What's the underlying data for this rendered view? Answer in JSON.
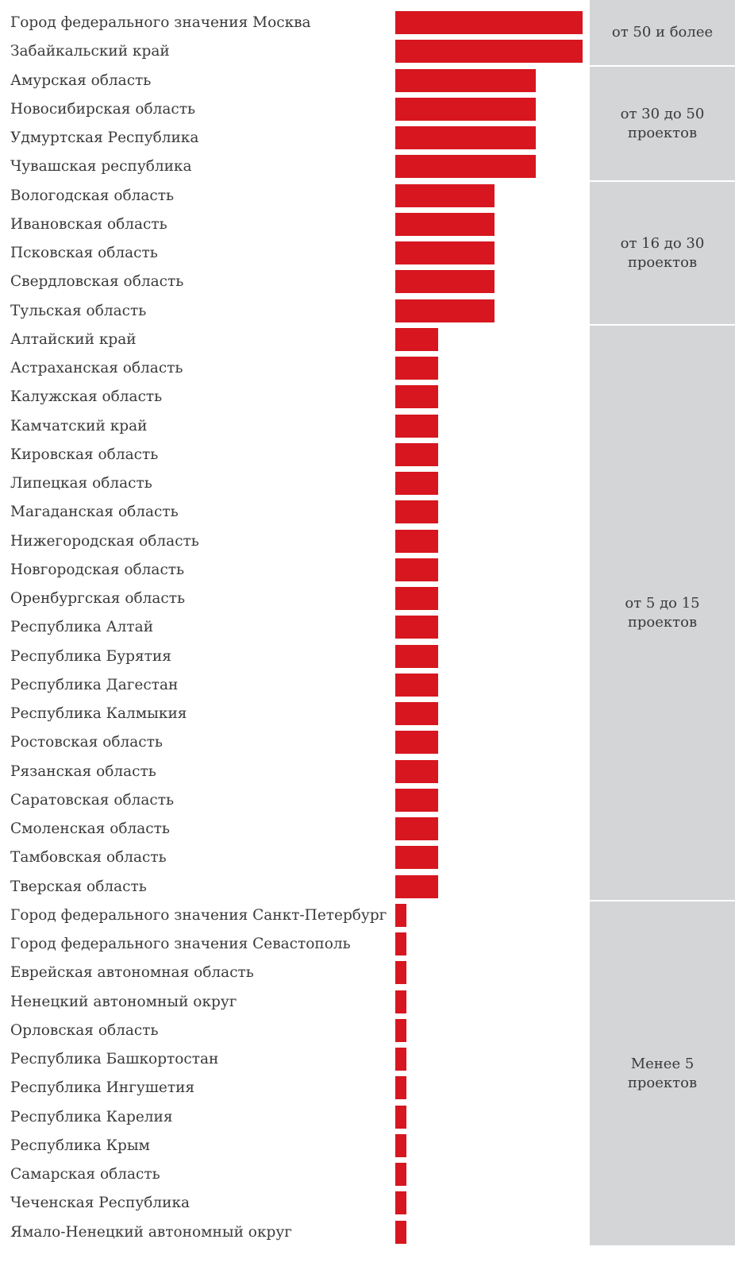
{
  "chart_data": {
    "type": "bar",
    "orientation": "horizontal",
    "categories": [
      "Город федерального значения Москва",
      "Забайкальский край",
      "Амурская область",
      "Новосибирская область",
      "Удмуртская Республика",
      "Чувашская республика",
      "Вологодская область",
      "Ивановская область",
      "Псковская область",
      "Свердловская область",
      "Тульская область",
      "Алтайский край",
      "Астраханская область",
      "Калужская область",
      "Камчатский край",
      "Кировская область",
      "Липецкая область",
      "Магаданская область",
      "Нижегородская область",
      "Новгородская область",
      "Оренбургская область",
      "Республика Алтай",
      "Республика Бурятия",
      "Республика Дагестан",
      "Республика Калмыкия",
      "Ростовская область",
      "Рязанская область",
      "Саратовская область",
      "Смоленская область",
      "Тамбовская область",
      "Тверская область",
      "Город федерального значения Санкт-Петербург",
      "Город федерального значения Севастополь",
      "Еврейская автономная область",
      "Ненецкий автономный округ",
      "Орловская область",
      "Республика Башкортостан",
      "Республика Ингушетия",
      "Республика Карелия",
      "Республика Крым",
      "Самарская область",
      "Чеченская Республика",
      "Ямало-Ненецкий автономный округ"
    ],
    "values": [
      50,
      50,
      37.5,
      37.5,
      37.5,
      37.5,
      26.5,
      26.5,
      26.5,
      26.5,
      26.5,
      11.5,
      11.5,
      11.5,
      11.5,
      11.5,
      11.5,
      11.5,
      11.5,
      11.5,
      11.5,
      11.5,
      11.5,
      11.5,
      11.5,
      11.5,
      11.5,
      11.5,
      11.5,
      11.5,
      11.5,
      3,
      3,
      3,
      3,
      3,
      3,
      3,
      3,
      3,
      3,
      3,
      3
    ],
    "xlim": [
      0,
      50
    ],
    "bar_color": "#d7161f",
    "grid": false,
    "groups": [
      {
        "label": "от 50 и более",
        "first_index": 0,
        "count": 2
      },
      {
        "label": "от 30 до 50 проектов",
        "first_index": 2,
        "count": 4
      },
      {
        "label": "от 16 до 30 проектов",
        "first_index": 6,
        "count": 5
      },
      {
        "label": "от 5 до 15 проектов",
        "first_index": 11,
        "count": 20
      },
      {
        "label": "Менее 5 проектов",
        "first_index": 31,
        "count": 12
      }
    ],
    "group_band_color": "#d4d5d7"
  }
}
